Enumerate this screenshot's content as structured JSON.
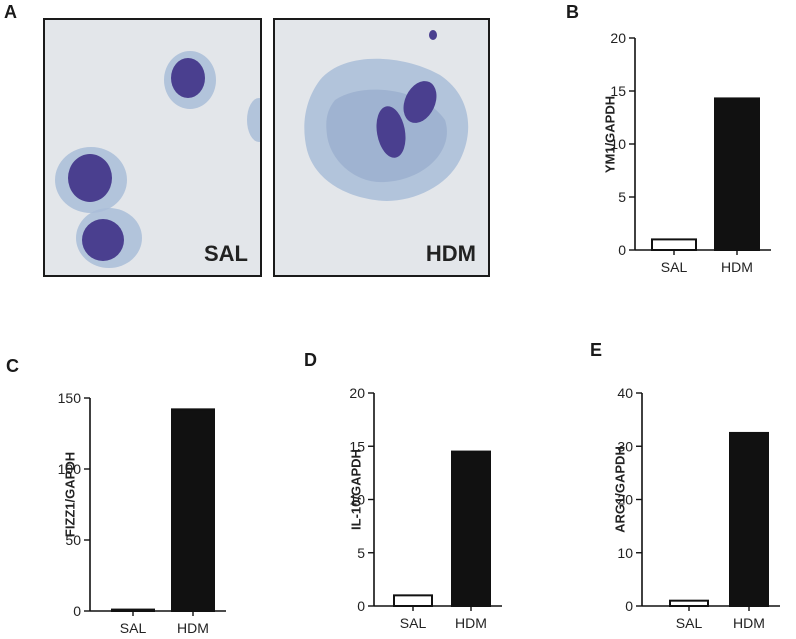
{
  "panels": {
    "a": "A",
    "b": "B",
    "c": "C",
    "d": "D",
    "e": "E"
  },
  "micrographs": [
    {
      "label": "SAL"
    },
    {
      "label": "HDM"
    }
  ],
  "colors": {
    "sal_bar": "#ffffff",
    "hdm_bar": "#111111",
    "bar_edge": "#111111",
    "micro_bg": "#e3e6ea",
    "cytoplasm": "#a9bdd8",
    "nucleus": "#4a3f8f"
  },
  "chart_data": [
    {
      "type": "bar",
      "panel": "B",
      "categories": [
        "SAL",
        "HDM"
      ],
      "values": [
        1.0,
        14.3
      ],
      "ylabel": "YM1/GAPDH",
      "ylim": [
        0,
        20
      ],
      "yticks": [
        0,
        5,
        10,
        15,
        20
      ]
    },
    {
      "type": "bar",
      "panel": "C",
      "categories": [
        "SAL",
        "HDM"
      ],
      "values": [
        1.0,
        142
      ],
      "ylabel": "FIZZ1/GAPDH",
      "ylim": [
        0,
        150
      ],
      "yticks": [
        0,
        50,
        100,
        150
      ]
    },
    {
      "type": "bar",
      "panel": "D",
      "categories": [
        "SAL",
        "HDM"
      ],
      "values": [
        1.0,
        14.5
      ],
      "ylabel": "IL-10/GAPDH",
      "ylim": [
        0,
        20
      ],
      "yticks": [
        0,
        5,
        10,
        15,
        20
      ]
    },
    {
      "type": "bar",
      "panel": "E",
      "categories": [
        "SAL",
        "HDM"
      ],
      "values": [
        1.0,
        32.5
      ],
      "ylabel": "ARG1/GAPDH",
      "ylim": [
        0,
        40
      ],
      "yticks": [
        0,
        10,
        20,
        30,
        40
      ]
    }
  ]
}
